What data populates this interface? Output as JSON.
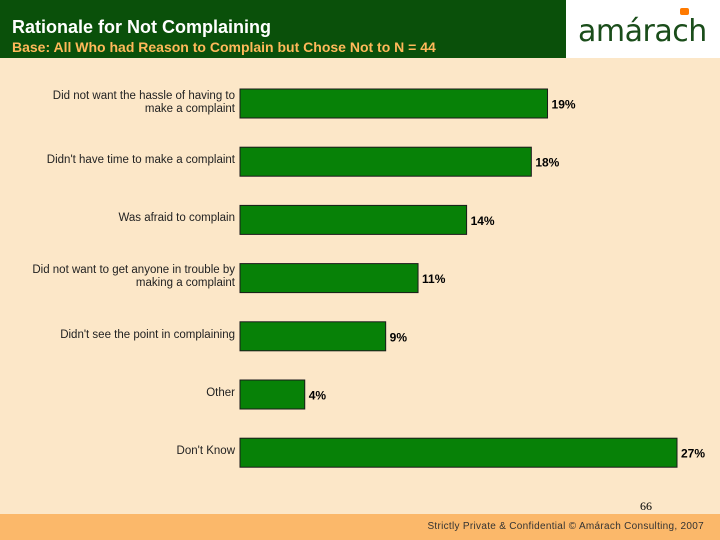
{
  "header": {
    "title": "Rationale for Not Complaining",
    "subtitle": "Base: All Who had Reason to Complain but Chose Not to N = 44",
    "logo": "amárach"
  },
  "footer": {
    "page_number": "66",
    "text": "Strictly Private & Confidential © Amárach Consulting, 2007"
  },
  "colors": {
    "bar": "#078107",
    "header_bg": "#0a500a",
    "background": "#fce7c8",
    "footer_bg": "#fbb86a"
  },
  "chart_data": {
    "type": "bar",
    "orientation": "horizontal",
    "title": "Rationale for Not Complaining",
    "categories": [
      "Did not want the hassle of having to make a complaint",
      "Didn't have time to make a complaint",
      "Was afraid to complain",
      "Did not want to get anyone in trouble by making a complaint",
      "Didn't see the point in complaining",
      "Other",
      "Don't Know"
    ],
    "label_lines": [
      [
        "Did not want the hassle of having to",
        "make a complaint"
      ],
      [
        "Didn't have time to make a complaint"
      ],
      [
        "Was afraid to complain"
      ],
      [
        "Did not want to get anyone in trouble by",
        "making a complaint"
      ],
      [
        "Didn't see the point in complaining"
      ],
      [
        "Other"
      ],
      [
        "Don't Know"
      ]
    ],
    "values": [
      19,
      18,
      14,
      11,
      9,
      4,
      27
    ],
    "value_labels": [
      "19%",
      "18%",
      "14%",
      "11%",
      "9%",
      "4%",
      "27%"
    ],
    "unit": "%",
    "xlim": [
      0,
      27
    ],
    "grid": false
  }
}
